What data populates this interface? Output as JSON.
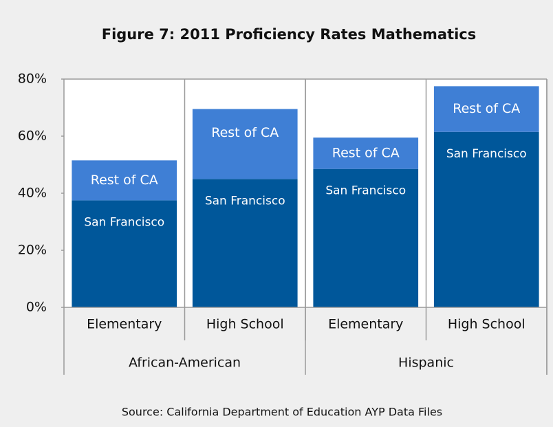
{
  "chart_data": {
    "type": "stacked_bar",
    "title": "Figure 7: 2011 Proficiency Rates Mathematics",
    "groups": [
      {
        "name": "African-American",
        "categories": [
          "Elementary",
          "High School"
        ]
      },
      {
        "name": "Hispanic",
        "categories": [
          "Elementary",
          "High School"
        ]
      }
    ],
    "series": [
      {
        "name": "San Francisco",
        "color": "#00579a",
        "values": [
          37.5,
          45,
          48.5,
          61.5
        ]
      },
      {
        "name": "Rest of CA",
        "color": "#3f7fd5",
        "values": [
          14,
          24.5,
          11,
          16
        ]
      }
    ],
    "ylim": [
      0,
      80
    ],
    "yticks": [
      {
        "value": 0,
        "label": "0%"
      },
      {
        "value": 20,
        "label": "20%"
      },
      {
        "value": 40,
        "label": "40%"
      },
      {
        "value": 60,
        "label": "60%"
      },
      {
        "value": 80,
        "label": "80%"
      }
    ],
    "source": "Source: California Department of Education AYP Data Files"
  }
}
